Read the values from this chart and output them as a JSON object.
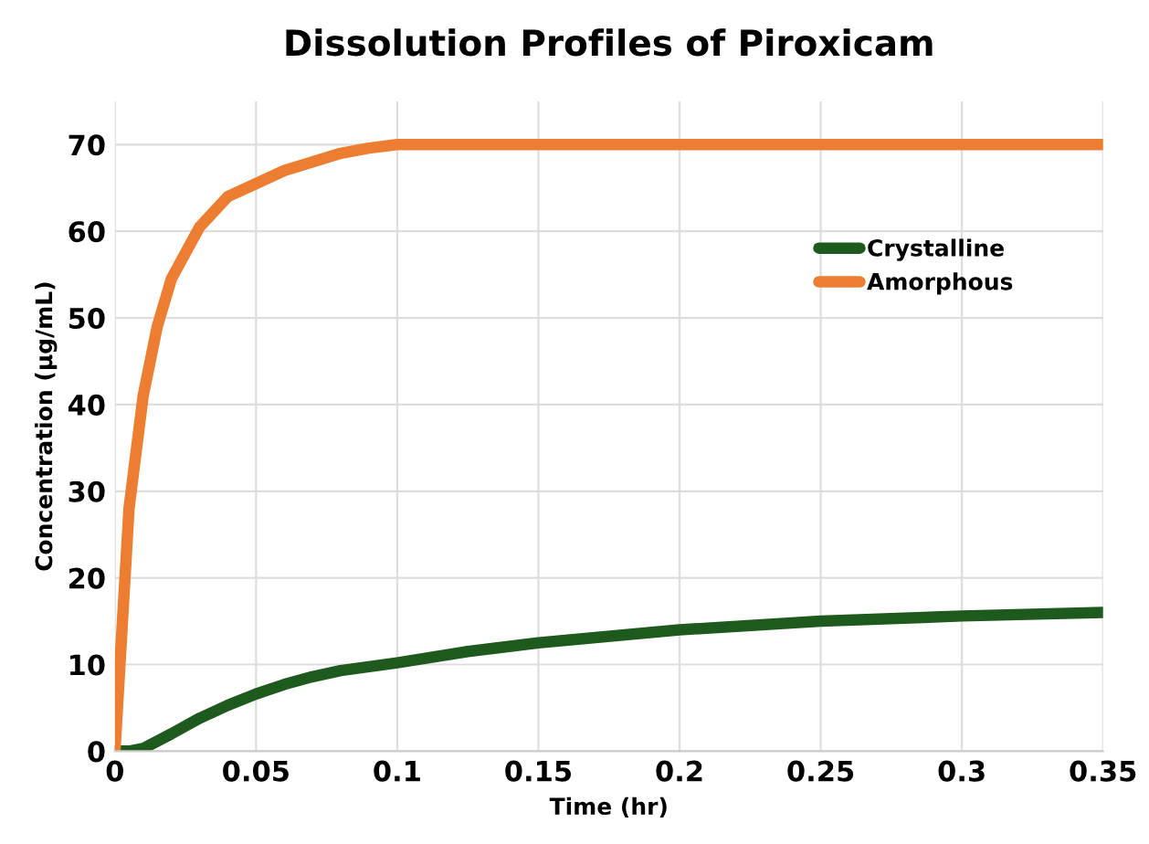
{
  "chart_data": {
    "type": "line",
    "title": "Dissolution Profiles of Piroxicam",
    "xlabel": "Time (hr)",
    "ylabel": "Concentration (µg/mL)",
    "xlim": [
      0,
      0.35
    ],
    "xticks": [
      0,
      0.05,
      0.1,
      0.15,
      0.2,
      0.25,
      0.3,
      0.35
    ],
    "ylim": [
      0,
      75
    ],
    "yticks": [
      0,
      10,
      20,
      30,
      40,
      50,
      60,
      70
    ],
    "grid": true,
    "legend": "top right",
    "marker": "none",
    "line_style": "solid",
    "series": [
      {
        "name": "Crystalline",
        "color": "#1e5a1e",
        "x": [
          0,
          0.005,
          0.01,
          0.02,
          0.03,
          0.04,
          0.05,
          0.06,
          0.07,
          0.08,
          0.1,
          0.125,
          0.15,
          0.2,
          0.25,
          0.3,
          0.35
        ],
        "values": [
          0,
          0,
          0.3,
          2,
          3.8,
          5.3,
          6.6,
          7.7,
          8.6,
          9.3,
          10.2,
          11.5,
          12.5,
          14,
          15,
          15.6,
          16
        ]
      },
      {
        "name": "Amorphous",
        "color": "#ed7d31",
        "x": [
          0,
          0.0025,
          0.005,
          0.01,
          0.015,
          0.02,
          0.03,
          0.04,
          0.05,
          0.06,
          0.07,
          0.08,
          0.09,
          0.1,
          0.35
        ],
        "values": [
          0,
          14,
          28,
          41,
          49,
          54.5,
          60.5,
          64,
          65.5,
          67,
          68,
          69,
          69.6,
          70,
          70
        ]
      }
    ]
  }
}
